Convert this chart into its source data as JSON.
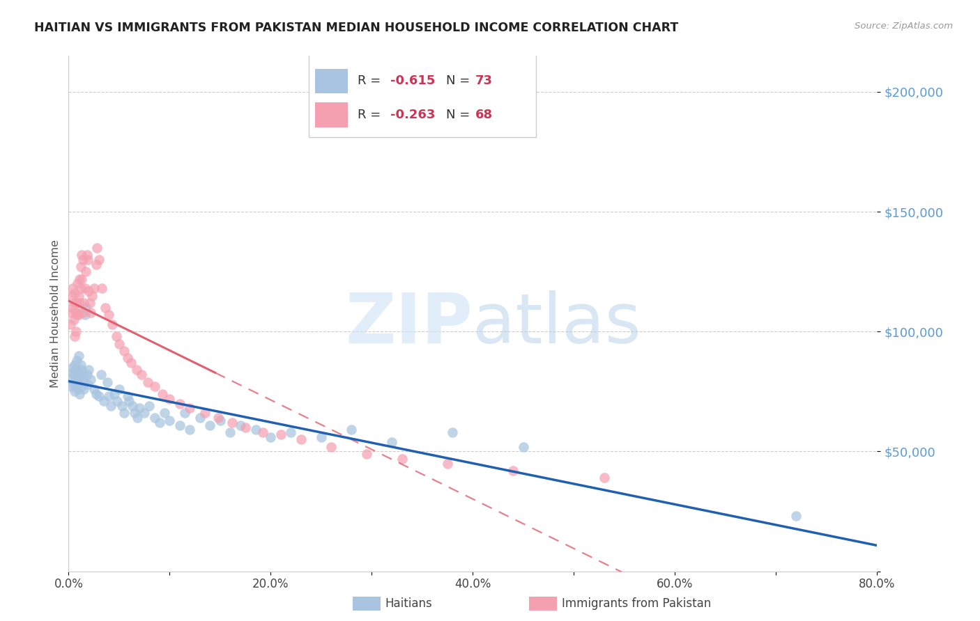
{
  "title": "HAITIAN VS IMMIGRANTS FROM PAKISTAN MEDIAN HOUSEHOLD INCOME CORRELATION CHART",
  "source": "Source: ZipAtlas.com",
  "ylabel": "Median Household Income",
  "y_ticks": [
    0,
    50000,
    100000,
    150000,
    200000
  ],
  "y_tick_labels": [
    "",
    "$50,000",
    "$100,000",
    "$150,000",
    "$200,000"
  ],
  "x_min": 0.0,
  "x_max": 0.8,
  "y_min": 0,
  "y_max": 215000,
  "haitian_color": "#a8c4e0",
  "pakistan_color": "#f4a0b0",
  "haitian_line_color": "#2060b0",
  "pakistan_line_color": "#e06070",
  "haitian_R": -0.615,
  "haitian_N": 73,
  "pakistan_R": -0.263,
  "pakistan_N": 68,
  "legend_label_haitian": "Haitians",
  "legend_label_pakistan": "Immigrants from Pakistan",
  "watermark_zip_color": "#cde4f5",
  "watermark_atlas_color": "#b5cfe8",
  "right_axis_color": "#5b9bd5",
  "haitian_scatter_x": [
    0.002,
    0.003,
    0.004,
    0.004,
    0.005,
    0.005,
    0.006,
    0.006,
    0.007,
    0.007,
    0.008,
    0.008,
    0.009,
    0.009,
    0.01,
    0.01,
    0.011,
    0.011,
    0.012,
    0.012,
    0.013,
    0.013,
    0.014,
    0.015,
    0.015,
    0.016,
    0.017,
    0.018,
    0.019,
    0.02,
    0.022,
    0.025,
    0.027,
    0.03,
    0.032,
    0.035,
    0.038,
    0.04,
    0.042,
    0.045,
    0.048,
    0.05,
    0.053,
    0.055,
    0.058,
    0.06,
    0.063,
    0.065,
    0.068,
    0.07,
    0.075,
    0.08,
    0.085,
    0.09,
    0.095,
    0.1,
    0.11,
    0.115,
    0.12,
    0.13,
    0.14,
    0.15,
    0.16,
    0.17,
    0.185,
    0.2,
    0.22,
    0.25,
    0.28,
    0.32,
    0.38,
    0.45,
    0.72
  ],
  "haitian_scatter_y": [
    80000,
    77000,
    83000,
    85000,
    78000,
    82000,
    86000,
    75000,
    80000,
    84000,
    79000,
    88000,
    76000,
    82000,
    90000,
    78000,
    83000,
    74000,
    81000,
    86000,
    77000,
    84000,
    79000,
    82000,
    76000,
    107000,
    110000,
    82000,
    78000,
    84000,
    80000,
    76000,
    74000,
    73000,
    82000,
    71000,
    79000,
    73000,
    69000,
    74000,
    71000,
    76000,
    69000,
    66000,
    73000,
    71000,
    69000,
    66000,
    64000,
    68000,
    66000,
    69000,
    64000,
    62000,
    66000,
    63000,
    61000,
    66000,
    59000,
    64000,
    61000,
    63000,
    58000,
    61000,
    59000,
    56000,
    58000,
    56000,
    59000,
    54000,
    58000,
    52000,
    23000
  ],
  "pakistan_scatter_x": [
    0.002,
    0.003,
    0.003,
    0.004,
    0.004,
    0.005,
    0.005,
    0.006,
    0.006,
    0.007,
    0.007,
    0.008,
    0.008,
    0.009,
    0.009,
    0.01,
    0.01,
    0.011,
    0.011,
    0.012,
    0.012,
    0.013,
    0.013,
    0.014,
    0.014,
    0.015,
    0.016,
    0.017,
    0.018,
    0.019,
    0.02,
    0.021,
    0.022,
    0.023,
    0.025,
    0.027,
    0.028,
    0.03,
    0.033,
    0.036,
    0.04,
    0.043,
    0.047,
    0.05,
    0.055,
    0.058,
    0.062,
    0.067,
    0.072,
    0.078,
    0.085,
    0.093,
    0.1,
    0.11,
    0.12,
    0.135,
    0.148,
    0.162,
    0.175,
    0.192,
    0.21,
    0.23,
    0.26,
    0.295,
    0.33,
    0.375,
    0.44,
    0.53
  ],
  "pakistan_scatter_y": [
    103000,
    108000,
    115000,
    110000,
    118000,
    105000,
    112000,
    116000,
    98000,
    108000,
    100000,
    112000,
    107000,
    120000,
    108000,
    115000,
    107000,
    122000,
    112000,
    118000,
    127000,
    132000,
    122000,
    130000,
    108000,
    112000,
    118000,
    125000,
    132000,
    130000,
    117000,
    112000,
    108000,
    115000,
    118000,
    128000,
    135000,
    130000,
    118000,
    110000,
    107000,
    103000,
    98000,
    95000,
    92000,
    89000,
    87000,
    84000,
    82000,
    79000,
    77000,
    74000,
    72000,
    70000,
    68000,
    66000,
    64000,
    62000,
    60000,
    58000,
    57000,
    55000,
    52000,
    49000,
    47000,
    45000,
    42000,
    39000
  ]
}
